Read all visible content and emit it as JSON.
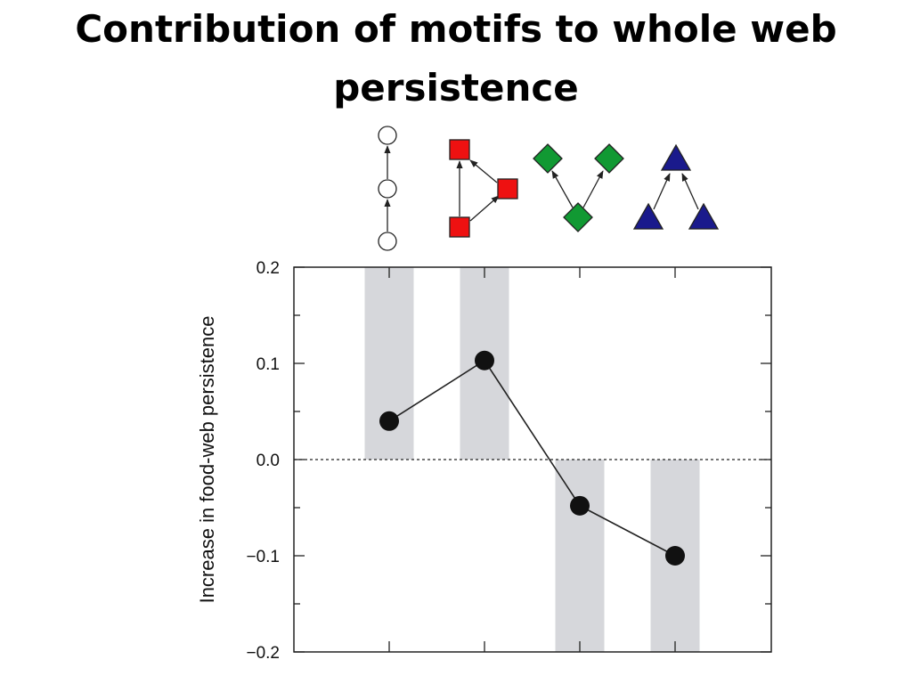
{
  "slide": {
    "title_line1": "Contribution of motifs to whole web",
    "title_line2": "persistence"
  },
  "chart_data": {
    "type": "line",
    "title": "Contribution of motifs to whole web persistence",
    "xlabel": "",
    "ylabel": "Increase in food-web persistence",
    "ylim": [
      -0.2,
      0.2
    ],
    "yticks": [
      0.2,
      0.1,
      0.0,
      -0.1,
      -0.2
    ],
    "ytick_labels": [
      "0.2",
      "0.1",
      "0.0",
      "−0.1",
      "−0.2"
    ],
    "grid": false,
    "zero_line": "dotted",
    "categories": [
      "chain",
      "omnivory",
      "apparent-competition",
      "exploitative-competition"
    ],
    "motif_icons": [
      {
        "name": "chain",
        "shape": "circle",
        "color": "#ffffff"
      },
      {
        "name": "omnivory",
        "shape": "square",
        "color": "#ee1111"
      },
      {
        "name": "apparent-competition",
        "shape": "diamond",
        "color": "#119933"
      },
      {
        "name": "exploitative-competition",
        "shape": "triangle",
        "color": "#1a1a8c"
      }
    ],
    "series": [
      {
        "values": [
          0.04,
          0.103,
          -0.048,
          -0.1
        ]
      }
    ],
    "bar_color": "#d6d7db"
  }
}
